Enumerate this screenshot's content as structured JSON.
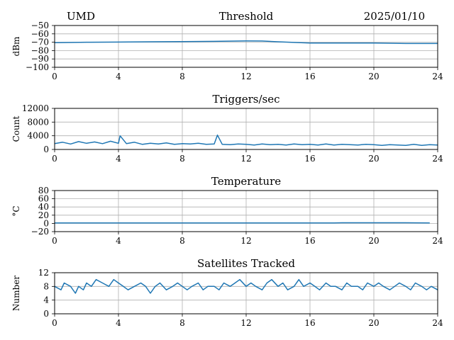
{
  "header": {
    "station": "UMD",
    "date": "2025/01/10"
  },
  "colors": {
    "series": "#1f77b4",
    "grid": "#b0b0b0"
  },
  "chart_data": [
    {
      "type": "line",
      "title": "Threshold",
      "xlabel": "",
      "ylabel": "dBm",
      "xlim": [
        0,
        24
      ],
      "ylim": [
        -100,
        -50
      ],
      "xticks": [
        0,
        4,
        8,
        12,
        16,
        20,
        24
      ],
      "yticks": [
        -100,
        -90,
        -80,
        -70,
        -60,
        -50
      ],
      "ytick_labels": [
        "−100",
        "−90",
        "−80",
        "−70",
        "−60",
        "−50"
      ],
      "grid": true,
      "series": [
        {
          "x": [
            0,
            2,
            4,
            6,
            8,
            10,
            12,
            13,
            14,
            16,
            18,
            20,
            22,
            24
          ],
          "values": [
            -70.5,
            -70,
            -69.8,
            -69.5,
            -69.3,
            -69,
            -68.5,
            -68.6,
            -69.5,
            -71,
            -71,
            -71,
            -71.5,
            -71.5
          ]
        }
      ]
    },
    {
      "type": "line",
      "title": "Triggers/sec",
      "xlabel": "",
      "ylabel": "Count",
      "xlim": [
        0,
        24
      ],
      "ylim": [
        0,
        12000
      ],
      "xticks": [
        0,
        4,
        8,
        12,
        16,
        20,
        24
      ],
      "yticks": [
        0,
        4000,
        8000,
        12000
      ],
      "ytick_labels": [
        "0",
        "4000",
        "8000",
        "12000"
      ],
      "grid": true,
      "series": [
        {
          "x": [
            0,
            0.5,
            1,
            1.5,
            2,
            2.5,
            3,
            3.5,
            4,
            4.1,
            4.5,
            5,
            5.5,
            6,
            6.5,
            7,
            7.5,
            8,
            8.5,
            9,
            9.5,
            10,
            10.2,
            10.5,
            11,
            11.5,
            12,
            12.5,
            13,
            13.5,
            14,
            14.5,
            15,
            15.5,
            16,
            16.5,
            17,
            17.5,
            18,
            18.5,
            19,
            19.5,
            20,
            20.5,
            21,
            21.5,
            22,
            22.5,
            23,
            23.5,
            24
          ],
          "values": [
            1700,
            2100,
            1600,
            2300,
            1800,
            2200,
            1700,
            2400,
            1800,
            4000,
            1700,
            2100,
            1500,
            1800,
            1600,
            1900,
            1500,
            1700,
            1600,
            1800,
            1500,
            1600,
            4200,
            1500,
            1400,
            1600,
            1500,
            1300,
            1600,
            1400,
            1500,
            1300,
            1600,
            1400,
            1500,
            1300,
            1600,
            1300,
            1500,
            1400,
            1300,
            1500,
            1400,
            1200,
            1400,
            1300,
            1200,
            1500,
            1200,
            1400,
            1300
          ]
        }
      ]
    },
    {
      "type": "line",
      "title": "Temperature",
      "xlabel": "",
      "ylabel": "°C",
      "xlim": [
        0,
        24
      ],
      "ylim": [
        -20,
        80
      ],
      "xticks": [
        0,
        4,
        8,
        12,
        16,
        20,
        24
      ],
      "yticks": [
        -20,
        0,
        20,
        40,
        60,
        80
      ],
      "ytick_labels": [
        "−20",
        "0",
        "20",
        "40",
        "60",
        "80"
      ],
      "grid": true,
      "series": [
        {
          "x": [
            0,
            4,
            8,
            12,
            16,
            17.5,
            18,
            20,
            22,
            23.5
          ],
          "values": [
            1,
            1,
            1,
            1,
            1,
            1,
            1.5,
            1.5,
            1.5,
            1
          ]
        }
      ]
    },
    {
      "type": "line",
      "title": "Satellites Tracked",
      "xlabel": "",
      "ylabel": "Number",
      "xlim": [
        0,
        24
      ],
      "ylim": [
        0,
        12
      ],
      "xticks": [
        0,
        4,
        8,
        12,
        16,
        20,
        24
      ],
      "yticks": [
        0,
        4,
        8,
        12
      ],
      "ytick_labels": [
        "0",
        "4",
        "8",
        "12"
      ],
      "grid": true,
      "series": [
        {
          "x": [
            0,
            0.4,
            0.6,
            1.0,
            1.3,
            1.5,
            1.8,
            2.0,
            2.3,
            2.6,
            3.0,
            3.4,
            3.7,
            4.0,
            4.3,
            4.6,
            5.0,
            5.4,
            5.7,
            6.0,
            6.3,
            6.6,
            7.0,
            7.4,
            7.7,
            8.0,
            8.3,
            8.6,
            9.0,
            9.3,
            9.6,
            10.0,
            10.3,
            10.6,
            11.0,
            11.3,
            11.6,
            12.0,
            12.3,
            12.6,
            13.0,
            13.3,
            13.6,
            14.0,
            14.3,
            14.6,
            15.0,
            15.3,
            15.6,
            16.0,
            16.3,
            16.6,
            17.0,
            17.3,
            17.6,
            18.0,
            18.3,
            18.6,
            19.0,
            19.3,
            19.6,
            20.0,
            20.3,
            20.6,
            21.0,
            21.3,
            21.6,
            22.0,
            22.3,
            22.6,
            23.0,
            23.3,
            23.6,
            24.0
          ],
          "values": [
            8,
            7,
            9,
            8,
            6,
            8,
            7,
            9,
            8,
            10,
            9,
            8,
            10,
            9,
            8,
            7,
            8,
            9,
            8,
            6,
            8,
            9,
            7,
            8,
            9,
            8,
            7,
            8,
            9,
            7,
            8,
            8,
            7,
            9,
            8,
            9,
            10,
            8,
            9,
            8,
            7,
            9,
            10,
            8,
            9,
            7,
            8,
            10,
            8,
            9,
            8,
            7,
            9,
            8,
            8,
            7,
            9,
            8,
            8,
            7,
            9,
            8,
            9,
            8,
            7,
            8,
            9,
            8,
            7,
            9,
            8,
            7,
            8,
            7
          ]
        }
      ]
    }
  ]
}
